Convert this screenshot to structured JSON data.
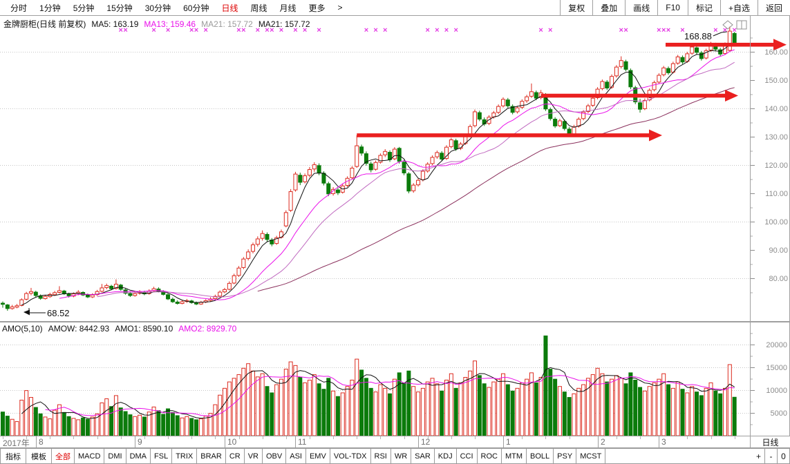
{
  "toolbar": {
    "periods": [
      "分时",
      "1分钟",
      "5分钟",
      "15分钟",
      "30分钟",
      "60分钟",
      "日线",
      "周线",
      "月线",
      "更多",
      ">"
    ],
    "active_period": "日线",
    "buttons": [
      "复权",
      "叠加",
      "画线",
      "F10",
      "标记",
      "+自选",
      "返回"
    ]
  },
  "title": {
    "name": "金牌厨柜(日线 前复权)",
    "ma_labels": [
      {
        "text": "MA5: 163.19",
        "color": "#111111"
      },
      {
        "text": "MA13: 159.46",
        "color": "#ea10ea"
      },
      {
        "text": "MA21: 157.72",
        "color": "#9b9b9b"
      },
      {
        "text": "MA21: 157.72",
        "color": "#111111"
      }
    ]
  },
  "amo_header": [
    {
      "text": "AMO(5,10)",
      "color": "#111111"
    },
    {
      "text": "AMOW: 8442.93",
      "color": "#111111"
    },
    {
      "text": "AMO1: 8590.10",
      "color": "#111111"
    },
    {
      "text": "AMO2: 8929.70",
      "color": "#ea10ea"
    }
  ],
  "colors": {
    "up": "#dc2a1e",
    "down": "#0b7b0b",
    "arrow": "#ea1f1f",
    "marker": "#e33ae3",
    "grid": "#c4c4c4",
    "axis_text": "#8c8c8c",
    "border": "#9f9f9f",
    "ma": [
      "#101010",
      "#ea10ea",
      "#c06ac0",
      "#8a2f5c"
    ],
    "amo_lines": [
      "#101010",
      "#ea10ea"
    ],
    "accent_red": "#dd0000"
  },
  "chart_data": {
    "type": "candlestick",
    "title": "金牌厨柜(日线 前复权)",
    "x_axis": {
      "year": "2017年",
      "months": [
        {
          "label": "8",
          "day": 7
        },
        {
          "label": "9",
          "day": 28
        },
        {
          "label": "10",
          "day": 47
        },
        {
          "label": "11",
          "day": 62
        },
        {
          "label": "12",
          "day": 88
        },
        {
          "label": "1",
          "day": 106
        },
        {
          "label": "2",
          "day": 126
        },
        {
          "label": "3",
          "day": 139
        }
      ],
      "panel_label": "日线"
    },
    "price_panel": {
      "ylim": [
        67,
        170
      ],
      "yticks": [
        160,
        150,
        140,
        130,
        120,
        110,
        100,
        90,
        80
      ],
      "gridlines": [
        160,
        140,
        120,
        100,
        80
      ],
      "ma_periods": [
        5,
        13,
        21,
        55
      ],
      "candles": [
        [
          71.2,
          71.8,
          69.6,
          70.8
        ],
        [
          70.6,
          70.9,
          68.52,
          69.3
        ],
        [
          69.3,
          70.6,
          68.9,
          69.9
        ],
        [
          69.8,
          70.9,
          69.4,
          70.3
        ],
        [
          70.4,
          72.9,
          70.1,
          72.4
        ],
        [
          72.6,
          75.2,
          72.2,
          74.6
        ],
        [
          74.7,
          76.6,
          74.0,
          75.3
        ],
        [
          75.1,
          75.6,
          73.4,
          73.9
        ],
        [
          73.8,
          74.3,
          72.4,
          72.9
        ],
        [
          72.8,
          74.1,
          72.5,
          73.6
        ],
        [
          73.5,
          74.9,
          73.1,
          74.3
        ],
        [
          74.2,
          75.5,
          73.8,
          74.9
        ],
        [
          75.0,
          77.2,
          74.6,
          75.6
        ],
        [
          75.5,
          75.9,
          74.1,
          74.5
        ],
        [
          74.4,
          74.9,
          73.2,
          73.8
        ],
        [
          73.7,
          75.0,
          73.3,
          74.5
        ],
        [
          74.6,
          75.8,
          74.0,
          75.1
        ],
        [
          75.0,
          75.4,
          73.7,
          74.1
        ],
        [
          74.0,
          74.6,
          73.0,
          73.4
        ],
        [
          73.4,
          74.7,
          73.0,
          74.1
        ],
        [
          74.2,
          75.9,
          73.8,
          75.3
        ],
        [
          75.4,
          78.0,
          75.0,
          76.6
        ],
        [
          76.7,
          78.1,
          76.1,
          77.4
        ],
        [
          77.2,
          77.7,
          75.8,
          76.3
        ],
        [
          76.4,
          79.6,
          76.0,
          77.9
        ],
        [
          77.6,
          78.0,
          75.6,
          76.1
        ],
        [
          75.9,
          76.3,
          74.2,
          74.7
        ],
        [
          74.6,
          75.2,
          73.4,
          73.9
        ],
        [
          73.9,
          75.3,
          73.5,
          74.6
        ],
        [
          74.7,
          75.8,
          74.2,
          75.1
        ],
        [
          75.0,
          75.6,
          74.0,
          74.5
        ],
        [
          74.6,
          76.1,
          74.2,
          75.5
        ],
        [
          75.6,
          77.0,
          75.1,
          76.3
        ],
        [
          76.2,
          76.8,
          75.0,
          75.4
        ],
        [
          75.3,
          75.8,
          73.9,
          74.3
        ],
        [
          74.2,
          74.6,
          72.3,
          72.7
        ],
        [
          72.6,
          73.2,
          71.3,
          71.7
        ],
        [
          71.6,
          72.2,
          70.7,
          71.1
        ],
        [
          71.1,
          72.3,
          70.8,
          71.7
        ],
        [
          71.8,
          72.7,
          71.3,
          72.1
        ],
        [
          72.0,
          72.4,
          71.0,
          71.4
        ],
        [
          71.3,
          71.8,
          70.5,
          70.9
        ],
        [
          70.9,
          72.0,
          70.6,
          71.5
        ],
        [
          71.6,
          72.6,
          71.2,
          72.1
        ],
        [
          72.2,
          73.3,
          71.8,
          72.7
        ],
        [
          72.8,
          74.2,
          72.4,
          73.6
        ],
        [
          73.7,
          75.7,
          73.3,
          75.1
        ],
        [
          75.2,
          76.6,
          74.7,
          76.0
        ],
        [
          76.1,
          78.9,
          75.7,
          78.2
        ],
        [
          78.3,
          81.6,
          77.9,
          80.9
        ],
        [
          81.0,
          84.3,
          80.5,
          83.6
        ],
        [
          83.8,
          87.5,
          83.2,
          86.8
        ],
        [
          87.0,
          90.2,
          86.3,
          89.3
        ],
        [
          89.5,
          92.6,
          88.8,
          91.8
        ],
        [
          92.0,
          94.8,
          91.2,
          93.9
        ],
        [
          94.1,
          96.9,
          93.3,
          95.8
        ],
        [
          95.5,
          96.2,
          93.0,
          93.7
        ],
        [
          93.5,
          94.2,
          91.3,
          92.1
        ],
        [
          92.3,
          95.0,
          91.8,
          94.3
        ],
        [
          94.5,
          97.2,
          94.0,
          96.4
        ],
        [
          98.5,
          104.0,
          98.0,
          103.2
        ],
        [
          104.0,
          111.5,
          103.4,
          110.6
        ],
        [
          111.2,
          117.6,
          110.6,
          116.8
        ],
        [
          116.4,
          117.3,
          112.9,
          113.9
        ],
        [
          114.1,
          117.0,
          113.5,
          116.2
        ],
        [
          116.4,
          119.3,
          115.7,
          118.4
        ],
        [
          118.6,
          121.0,
          117.6,
          120.1
        ],
        [
          119.8,
          120.6,
          116.4,
          117.3
        ],
        [
          117.1,
          117.8,
          112.8,
          113.6
        ],
        [
          113.4,
          114.1,
          109.0,
          109.8
        ],
        [
          109.9,
          112.2,
          109.2,
          111.4
        ],
        [
          111.2,
          111.9,
          109.4,
          110.2
        ],
        [
          110.4,
          113.3,
          109.9,
          112.6
        ],
        [
          112.8,
          116.0,
          112.2,
          115.3
        ],
        [
          115.5,
          119.6,
          114.9,
          118.9
        ],
        [
          119.5,
          130.5,
          119.0,
          126.8
        ],
        [
          126.4,
          127.2,
          123.3,
          124.2
        ],
        [
          124.0,
          124.8,
          119.8,
          120.6
        ],
        [
          120.4,
          121.2,
          117.4,
          118.3
        ],
        [
          118.5,
          121.6,
          118.0,
          120.9
        ],
        [
          121.0,
          124.1,
          120.5,
          123.4
        ],
        [
          123.6,
          125.6,
          122.8,
          124.8
        ],
        [
          124.5,
          125.2,
          121.1,
          121.9
        ],
        [
          122.2,
          126.3,
          121.7,
          125.6
        ],
        [
          125.9,
          126.4,
          120.5,
          121.3
        ],
        [
          121.0,
          121.8,
          116.4,
          117.2
        ],
        [
          116.9,
          117.5,
          110.0,
          110.8
        ],
        [
          110.9,
          113.6,
          110.2,
          112.9
        ],
        [
          113.0,
          115.3,
          112.4,
          114.6
        ],
        [
          114.8,
          118.5,
          114.2,
          117.8
        ],
        [
          117.9,
          121.0,
          117.3,
          120.3
        ],
        [
          120.5,
          123.4,
          119.9,
          122.7
        ],
        [
          122.9,
          125.1,
          122.2,
          124.4
        ],
        [
          124.2,
          124.9,
          121.4,
          122.1
        ],
        [
          122.3,
          127.0,
          121.8,
          126.3
        ],
        [
          126.5,
          129.6,
          125.9,
          128.9
        ],
        [
          128.6,
          129.3,
          125.0,
          125.7
        ],
        [
          125.9,
          128.1,
          125.3,
          127.4
        ],
        [
          127.6,
          130.9,
          127.1,
          130.2
        ],
        [
          130.4,
          134.3,
          129.8,
          133.6
        ],
        [
          133.9,
          139.6,
          133.3,
          138.8
        ],
        [
          138.5,
          139.2,
          135.5,
          136.2
        ],
        [
          136.0,
          136.8,
          133.8,
          134.5
        ],
        [
          134.7,
          137.6,
          134.1,
          136.9
        ],
        [
          137.0,
          139.1,
          136.4,
          138.4
        ],
        [
          138.6,
          141.4,
          138.0,
          140.7
        ],
        [
          140.9,
          143.9,
          140.3,
          143.2
        ],
        [
          143.0,
          143.7,
          140.2,
          140.9
        ],
        [
          140.7,
          141.4,
          137.9,
          138.6
        ],
        [
          138.8,
          140.9,
          138.2,
          140.2
        ],
        [
          140.4,
          143.2,
          139.8,
          142.5
        ],
        [
          142.7,
          144.8,
          142.0,
          144.1
        ],
        [
          144.3,
          148.8,
          143.7,
          145.9
        ],
        [
          145.6,
          146.3,
          142.9,
          143.6
        ],
        [
          143.8,
          146.5,
          143.2,
          145.5
        ],
        [
          144.9,
          145.4,
          139.1,
          139.8
        ],
        [
          139.6,
          140.3,
          135.7,
          136.4
        ],
        [
          136.2,
          136.9,
          133.1,
          133.8
        ],
        [
          133.9,
          136.3,
          133.4,
          135.6
        ],
        [
          135.4,
          136.1,
          132.2,
          132.9
        ],
        [
          132.7,
          133.4,
          130.1,
          130.8
        ],
        [
          130.9,
          134.2,
          130.4,
          133.5
        ],
        [
          133.7,
          136.9,
          133.2,
          136.2
        ],
        [
          136.4,
          139.4,
          135.8,
          138.7
        ],
        [
          138.9,
          141.6,
          138.3,
          140.9
        ],
        [
          141.1,
          144.3,
          140.5,
          143.6
        ],
        [
          143.8,
          147.5,
          143.2,
          146.8
        ],
        [
          147.0,
          150.2,
          146.4,
          149.5
        ],
        [
          149.3,
          150.0,
          146.5,
          147.2
        ],
        [
          147.5,
          152.0,
          146.9,
          151.3
        ],
        [
          151.5,
          155.3,
          150.9,
          154.6
        ],
        [
          154.8,
          158.4,
          154.1,
          156.9
        ],
        [
          156.5,
          157.2,
          153.1,
          153.8
        ],
        [
          153.4,
          154.1,
          146.8,
          147.6
        ],
        [
          147.3,
          148.0,
          141.5,
          142.3
        ],
        [
          142.0,
          143.4,
          138.5,
          139.7
        ],
        [
          139.9,
          143.5,
          139.4,
          142.8
        ],
        [
          143.0,
          147.1,
          142.5,
          146.4
        ],
        [
          146.6,
          149.8,
          146.0,
          149.1
        ],
        [
          149.3,
          152.4,
          148.7,
          151.7
        ],
        [
          151.9,
          155.0,
          151.3,
          154.3
        ],
        [
          154.1,
          154.8,
          151.9,
          152.6
        ],
        [
          152.8,
          156.5,
          152.3,
          155.8
        ],
        [
          156.0,
          158.9,
          155.4,
          158.2
        ],
        [
          158.0,
          158.7,
          155.7,
          156.4
        ],
        [
          156.6,
          160.0,
          156.1,
          159.3
        ],
        [
          159.5,
          162.4,
          158.9,
          161.7
        ],
        [
          161.4,
          162.1,
          159.1,
          159.8
        ],
        [
          159.6,
          160.3,
          156.9,
          157.6
        ],
        [
          157.8,
          161.1,
          157.3,
          160.4
        ],
        [
          160.6,
          163.5,
          160.0,
          162.8
        ],
        [
          162.5,
          163.2,
          160.2,
          160.9
        ],
        [
          160.7,
          161.4,
          158.5,
          159.2
        ],
        [
          159.4,
          163.3,
          158.9,
          162.6
        ],
        [
          160.5,
          168.88,
          160.0,
          167.3
        ],
        [
          166.5,
          167.0,
          162.6,
          163.3
        ]
      ]
    },
    "amo_panel": {
      "yticks": [
        20000,
        15000,
        10000,
        5000
      ],
      "ma_periods": [
        5,
        10
      ],
      "values": [
        5200,
        4300,
        3600,
        3100,
        7800,
        9900,
        8400,
        6200,
        4800,
        4100,
        3700,
        5600,
        6800,
        5100,
        4200,
        3800,
        3500,
        3900,
        3600,
        4100,
        4800,
        7200,
        8100,
        6400,
        8800,
        6100,
        5300,
        4600,
        4200,
        4500,
        4100,
        5200,
        6300,
        5500,
        4700,
        5900,
        5100,
        4400,
        3900,
        4200,
        3800,
        3500,
        3700,
        4300,
        4900,
        6800,
        8900,
        10400,
        11800,
        12600,
        13400,
        14800,
        15800,
        14200,
        12900,
        13600,
        10800,
        9400,
        11200,
        12400,
        14600,
        16200,
        15400,
        12800,
        11600,
        12200,
        13400,
        11400,
        10200,
        12600,
        9800,
        8600,
        9400,
        10800,
        12200,
        16800,
        14400,
        12600,
        10400,
        9600,
        11200,
        10400,
        9200,
        12400,
        13800,
        11600,
        14200,
        10800,
        9600,
        10400,
        11800,
        12600,
        11400,
        9800,
        12200,
        13600,
        10400,
        11600,
        12800,
        14200,
        16400,
        13200,
        11400,
        10600,
        11800,
        12400,
        13600,
        11200,
        9800,
        10400,
        11600,
        12400,
        13800,
        11600,
        12800,
        21900,
        14600,
        12400,
        10800,
        9600,
        8400,
        9200,
        10400,
        11200,
        12600,
        13400,
        14800,
        13600,
        11800,
        12400,
        13200,
        12600,
        11400,
        13800,
        12200,
        10600,
        9800,
        10800,
        11600,
        12400,
        13600,
        11200,
        10400,
        11800,
        10200,
        9400,
        10800,
        9600,
        8800,
        10400,
        11600,
        9800,
        9200,
        10400,
        15600,
        8443
      ]
    },
    "annotations": {
      "high_label": "168.88",
      "high_day": 154,
      "low_label": "68.52",
      "low_day": 1,
      "arrows": [
        {
          "day_from": 75,
          "x_to": 958,
          "price": 130.5
        },
        {
          "day_from": 114,
          "x_to": 1068,
          "price": 144.5
        },
        {
          "x_from": 963,
          "x_to": 1138,
          "price": 162.5
        }
      ],
      "marker_days": [
        25,
        26,
        32,
        35,
        40,
        41,
        43,
        50,
        51,
        54,
        56,
        57,
        59,
        62,
        64,
        67,
        77,
        79,
        81,
        90,
        92,
        94,
        96,
        114,
        116,
        131,
        132,
        139,
        140,
        141,
        144,
        151,
        153,
        155
      ]
    }
  },
  "indicator_bar": {
    "tabs": [
      "指标",
      "模板",
      "全部",
      "MACD",
      "DMI",
      "DMA",
      "FSL",
      "TRIX",
      "BRAR",
      "CR",
      "VR",
      "OBV",
      "ASI",
      "EMV",
      "VOL-TDX",
      "RSI",
      "WR",
      "SAR",
      "KDJ",
      "CCI",
      "ROC",
      "MTM",
      "BOLL",
      "PSY",
      "MCST"
    ],
    "active_tab": "全部",
    "zoom_buttons": [
      "+",
      "-",
      "0"
    ]
  }
}
